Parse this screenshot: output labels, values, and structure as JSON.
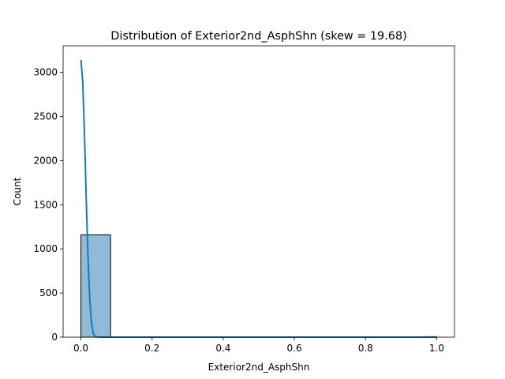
{
  "chart_data": {
    "type": "bar",
    "title": "Distribution of Exterior2nd_AsphShn (skew = 19.68)",
    "xlabel": "Exterior2nd_AsphShn",
    "ylabel": "Count",
    "xlim": [
      -0.05,
      1.05
    ],
    "ylim": [
      0,
      3300
    ],
    "xticks": [
      0.0,
      0.2,
      0.4,
      0.6,
      0.8,
      1.0
    ],
    "xtick_labels": [
      "0.0",
      "0.2",
      "0.4",
      "0.6",
      "0.8",
      "1.0"
    ],
    "yticks": [
      0,
      500,
      1000,
      1500,
      2000,
      2500,
      3000
    ],
    "ytick_labels": [
      "0",
      "500",
      "1000",
      "1500",
      "2000",
      "2500",
      "3000"
    ],
    "grid": false,
    "bins": [
      {
        "x0": 0.0,
        "x1": 0.0833,
        "count": 1159
      },
      {
        "x0": 0.0833,
        "x1": 0.1667,
        "count": 0
      },
      {
        "x0": 0.1667,
        "x1": 0.25,
        "count": 0
      },
      {
        "x0": 0.25,
        "x1": 0.3333,
        "count": 0
      },
      {
        "x0": 0.3333,
        "x1": 0.4167,
        "count": 0
      },
      {
        "x0": 0.4167,
        "x1": 0.5,
        "count": 0
      },
      {
        "x0": 0.5,
        "x1": 0.5833,
        "count": 0
      },
      {
        "x0": 0.5833,
        "x1": 0.6667,
        "count": 0
      },
      {
        "x0": 0.6667,
        "x1": 0.75,
        "count": 0
      },
      {
        "x0": 0.75,
        "x1": 0.8333,
        "count": 0
      },
      {
        "x0": 0.8333,
        "x1": 0.9167,
        "count": 0
      },
      {
        "x0": 0.9167,
        "x1": 1.0,
        "count": 1
      }
    ],
    "kde": {
      "x": [
        0.0,
        0.005,
        0.01,
        0.015,
        0.02,
        0.025,
        0.03,
        0.035,
        0.04,
        0.045,
        0.05,
        0.06,
        0.08,
        0.1,
        0.2,
        0.4,
        0.6,
        0.8,
        0.95,
        1.0
      ],
      "y": [
        3140,
        2900,
        2300,
        1550,
        900,
        420,
        150,
        40,
        10,
        2,
        0,
        0,
        0,
        0,
        0,
        0,
        0,
        0,
        0,
        2
      ]
    },
    "colors": {
      "bar_fill": "#1f77b4",
      "bar_fill_opacity": 0.5,
      "bar_edge": "#000000",
      "kde_line": "#1f77b4",
      "axes": "#000000"
    }
  }
}
